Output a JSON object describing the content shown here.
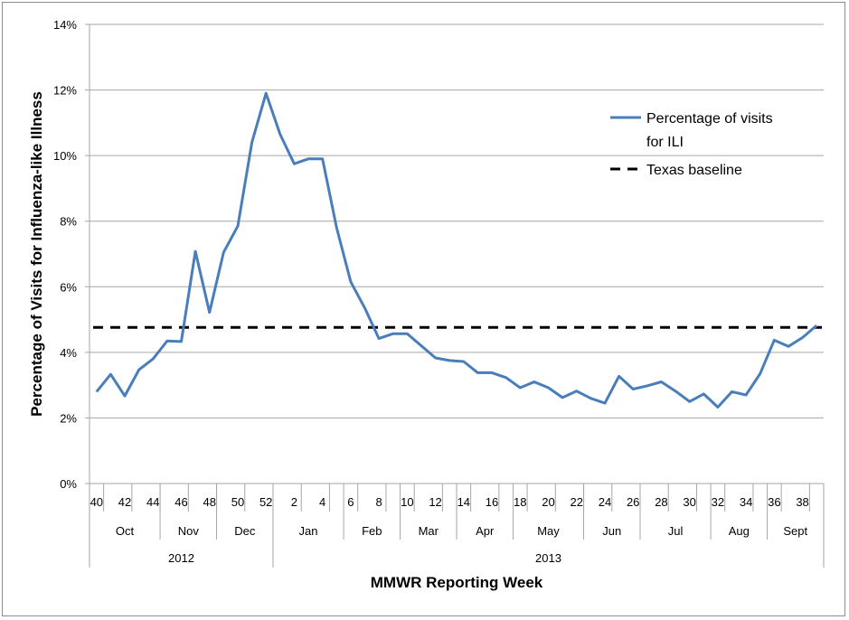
{
  "chart_data": {
    "type": "line",
    "xlabel": "MMWR Reporting Week",
    "ylabel": "Percentage of Visits for Influenza-like Illness",
    "ylim": [
      0,
      14
    ],
    "yticks": [
      "0%",
      "2%",
      "4%",
      "6%",
      "8%",
      "10%",
      "12%",
      "14%"
    ],
    "grid": true,
    "legend_position": "top-right",
    "weeks": [
      40,
      41,
      42,
      43,
      44,
      45,
      46,
      47,
      48,
      49,
      50,
      51,
      52,
      1,
      2,
      3,
      4,
      5,
      6,
      7,
      8,
      9,
      10,
      11,
      12,
      13,
      14,
      15,
      16,
      17,
      18,
      19,
      20,
      21,
      22,
      23,
      24,
      25,
      26,
      27,
      28,
      29,
      30,
      31,
      32,
      33,
      34,
      35,
      36,
      37,
      38,
      39
    ],
    "week_tick_labels": [
      "40",
      "42",
      "44",
      "46",
      "48",
      "50",
      "52",
      "2",
      "4",
      "6",
      "8",
      "10",
      "12",
      "14",
      "16",
      "18",
      "20",
      "22",
      "24",
      "26",
      "28",
      "30",
      "32",
      "34",
      "36",
      "38"
    ],
    "months": [
      {
        "label": "Oct",
        "weeks": 5
      },
      {
        "label": "Nov",
        "weeks": 4
      },
      {
        "label": "Dec",
        "weeks": 4
      },
      {
        "label": "Jan",
        "weeks": 5
      },
      {
        "label": "Feb",
        "weeks": 4
      },
      {
        "label": "Mar",
        "weeks": 4
      },
      {
        "label": "Apr",
        "weeks": 4
      },
      {
        "label": "May",
        "weeks": 5
      },
      {
        "label": "Jun",
        "weeks": 4
      },
      {
        "label": "Jul",
        "weeks": 5
      },
      {
        "label": "Aug",
        "weeks": 4
      },
      {
        "label": "Sept",
        "weeks": 4
      }
    ],
    "years": [
      {
        "label": "2012",
        "weeks": 13
      },
      {
        "label": "2013",
        "weeks": 39
      }
    ],
    "series": [
      {
        "name": "Percentage of visits for ILI",
        "color": "#4a7ebb",
        "style": "solid",
        "values": [
          2.8,
          3.33,
          2.67,
          3.47,
          3.8,
          4.35,
          4.33,
          7.08,
          5.22,
          7.05,
          7.85,
          10.4,
          11.9,
          10.65,
          9.75,
          9.9,
          9.9,
          7.8,
          6.15,
          5.35,
          4.42,
          4.57,
          4.57,
          4.2,
          3.83,
          3.75,
          3.72,
          3.38,
          3.38,
          3.23,
          2.92,
          3.1,
          2.92,
          2.62,
          2.82,
          2.6,
          2.45,
          3.27,
          2.88,
          2.98,
          3.1,
          2.82,
          2.5,
          2.73,
          2.33,
          2.8,
          2.7,
          3.35,
          4.37,
          4.18,
          4.45,
          4.82
        ]
      },
      {
        "name": "Texas baseline",
        "color": "#000000",
        "style": "dashed",
        "value": 4.76
      }
    ],
    "legend": {
      "line1": "Percentage of visits",
      "line2": "for ILI",
      "baseline": "Texas baseline"
    }
  }
}
